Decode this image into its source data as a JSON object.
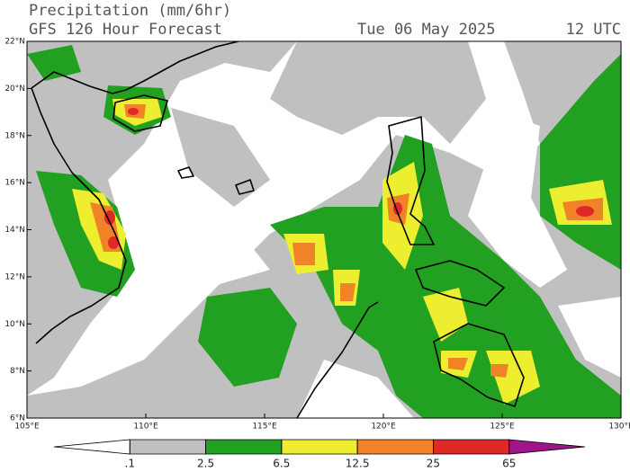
{
  "chart_data": {
    "type": "map",
    "title": "Precipitation (mm/6hr)",
    "subtitle": "GFS 126 Hour Forecast",
    "date": "Tue 06 May 2025",
    "time": "12 UTC",
    "xlim": [
      105,
      130
    ],
    "ylim": [
      6,
      22
    ],
    "xticks": [
      {
        "value": 105,
        "label": "105°E"
      },
      {
        "value": 110,
        "label": "110°E"
      },
      {
        "value": 115,
        "label": "115°E"
      },
      {
        "value": 120,
        "label": "120°E"
      },
      {
        "value": 125,
        "label": "125°E"
      },
      {
        "value": 130,
        "label": "130°E"
      }
    ],
    "yticks": [
      {
        "value": 6,
        "label": "6°N"
      },
      {
        "value": 8,
        "label": "8°N"
      },
      {
        "value": 10,
        "label": "10°N"
      },
      {
        "value": 12,
        "label": "12°N"
      },
      {
        "value": 14,
        "label": "14°N"
      },
      {
        "value": 16,
        "label": "16°N"
      },
      {
        "value": 18,
        "label": "18°N"
      },
      {
        "value": 20,
        "label": "20°N"
      },
      {
        "value": 22,
        "label": "22°N"
      }
    ],
    "colorbar": {
      "levels": [
        {
          "value": 0.1,
          "label": ".1"
        },
        2.5,
        6.5,
        12.5,
        25,
        65
      ],
      "colors": [
        "#ffffff",
        "#c0c0c0",
        "#22a022",
        "#eeee30",
        "#f08228",
        "#e02828",
        "#a0148c"
      ]
    }
  }
}
